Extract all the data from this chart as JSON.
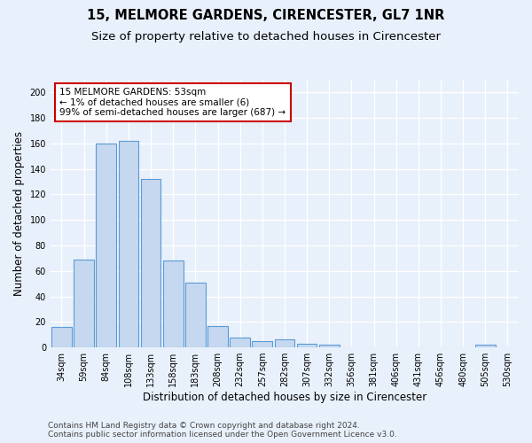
{
  "title": "15, MELMORE GARDENS, CIRENCESTER, GL7 1NR",
  "subtitle": "Size of property relative to detached houses in Cirencester",
  "xlabel": "Distribution of detached houses by size in Cirencester",
  "ylabel": "Number of detached properties",
  "categories": [
    "34sqm",
    "59sqm",
    "84sqm",
    "108sqm",
    "133sqm",
    "158sqm",
    "183sqm",
    "208sqm",
    "232sqm",
    "257sqm",
    "282sqm",
    "307sqm",
    "332sqm",
    "356sqm",
    "381sqm",
    "406sqm",
    "431sqm",
    "456sqm",
    "480sqm",
    "505sqm",
    "530sqm"
  ],
  "values": [
    16,
    69,
    160,
    162,
    132,
    68,
    51,
    17,
    8,
    5,
    6,
    3,
    2,
    0,
    0,
    0,
    0,
    0,
    0,
    2,
    0
  ],
  "bar_color": "#c5d8f0",
  "bar_edge_color": "#5b9bd5",
  "bg_color": "#e8f0fb",
  "grid_color": "#ffffff",
  "annotation_line1": "15 MELMORE GARDENS: 53sqm",
  "annotation_line2": "← 1% of detached houses are smaller (6)",
  "annotation_line3": "99% of semi-detached houses are larger (687) →",
  "annotation_box_color": "#ffffff",
  "annotation_box_edge": "#cc0000",
  "ylim": [
    0,
    210
  ],
  "yticks": [
    0,
    20,
    40,
    60,
    80,
    100,
    120,
    140,
    160,
    180,
    200
  ],
  "footer_line1": "Contains HM Land Registry data © Crown copyright and database right 2024.",
  "footer_line2": "Contains public sector information licensed under the Open Government Licence v3.0.",
  "title_fontsize": 10.5,
  "subtitle_fontsize": 9.5,
  "xlabel_fontsize": 8.5,
  "ylabel_fontsize": 8.5,
  "tick_fontsize": 7,
  "annot_fontsize": 7.5,
  "footer_fontsize": 6.5
}
